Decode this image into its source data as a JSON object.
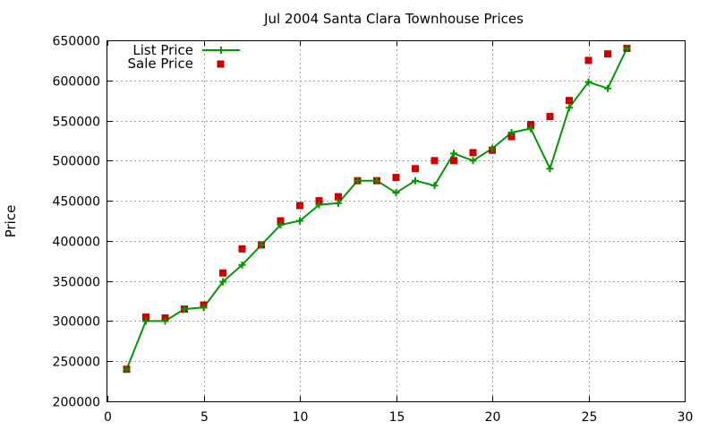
{
  "chart_data": {
    "type": "line",
    "title": "Jul 2004 Santa Clara Townhouse Prices",
    "xlabel": "",
    "ylabel": "Price",
    "xlim": [
      0,
      30
    ],
    "ylim": [
      200000,
      650000
    ],
    "x_ticks": [
      "0",
      "5",
      "10",
      "15",
      "20",
      "25",
      "30"
    ],
    "y_ticks": [
      "200000",
      "250000",
      "300000",
      "350000",
      "400000",
      "450000",
      "500000",
      "550000",
      "600000",
      "650000"
    ],
    "grid": true,
    "legend_position": "top-left",
    "series": [
      {
        "name": "List Price",
        "style": "line-with-plus",
        "color": "#009900",
        "x": [
          1,
          2,
          3,
          4,
          5,
          6,
          7,
          8,
          9,
          10,
          11,
          12,
          13,
          14,
          15,
          16,
          17,
          18,
          19,
          20,
          21,
          22,
          23,
          24,
          25,
          26,
          27
        ],
        "y": [
          240000,
          300000,
          300000,
          315000,
          317000,
          349000,
          370000,
          395000,
          420000,
          425000,
          445000,
          447000,
          475000,
          475000,
          460000,
          475000,
          469000,
          509000,
          500000,
          515000,
          535000,
          540000,
          490000,
          566000,
          598000,
          590000,
          640000
        ]
      },
      {
        "name": "Sale Price",
        "style": "square-markers",
        "color": "#cc0000",
        "x": [
          1,
          2,
          3,
          4,
          5,
          6,
          7,
          8,
          9,
          10,
          11,
          12,
          13,
          14,
          15,
          16,
          17,
          18,
          19,
          20,
          21,
          22,
          23,
          24,
          25,
          26,
          27
        ],
        "y": [
          240000,
          305000,
          304000,
          315000,
          320000,
          360000,
          390000,
          395000,
          425000,
          444000,
          450000,
          455000,
          475000,
          475000,
          479000,
          490000,
          500000,
          500000,
          510000,
          513000,
          530000,
          545000,
          555000,
          575000,
          625000,
          633000,
          640000
        ]
      }
    ]
  }
}
